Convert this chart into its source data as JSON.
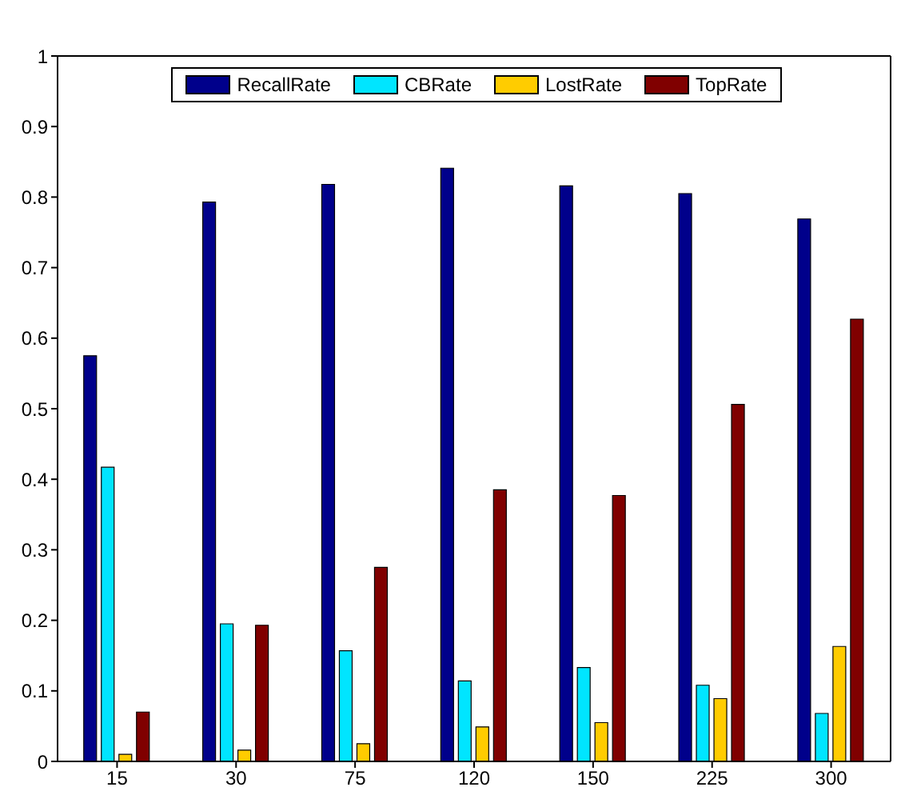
{
  "chart_data": {
    "type": "bar",
    "categories": [
      "15",
      "30",
      "75",
      "120",
      "150",
      "225",
      "300"
    ],
    "series": [
      {
        "name": "RecallRate",
        "color": "#00008b",
        "values": [
          0.575,
          0.793,
          0.818,
          0.841,
          0.816,
          0.805,
          0.769
        ]
      },
      {
        "name": "CBRate",
        "color": "#00e5ff",
        "values": [
          0.417,
          0.195,
          0.157,
          0.114,
          0.133,
          0.108,
          0.068
        ]
      },
      {
        "name": "LostRate",
        "color": "#ffcc00",
        "values": [
          0.01,
          0.016,
          0.025,
          0.049,
          0.055,
          0.089,
          0.163
        ]
      },
      {
        "name": "TopRate",
        "color": "#800000",
        "values": [
          0.07,
          0.193,
          0.275,
          0.385,
          0.377,
          0.506,
          0.627
        ]
      }
    ],
    "ylim": [
      0,
      1
    ],
    "yticks": [
      0,
      0.1,
      0.2,
      0.3,
      0.4,
      0.5,
      0.6,
      0.7,
      0.8,
      0.9,
      1
    ],
    "grid": false,
    "legend": "top"
  }
}
